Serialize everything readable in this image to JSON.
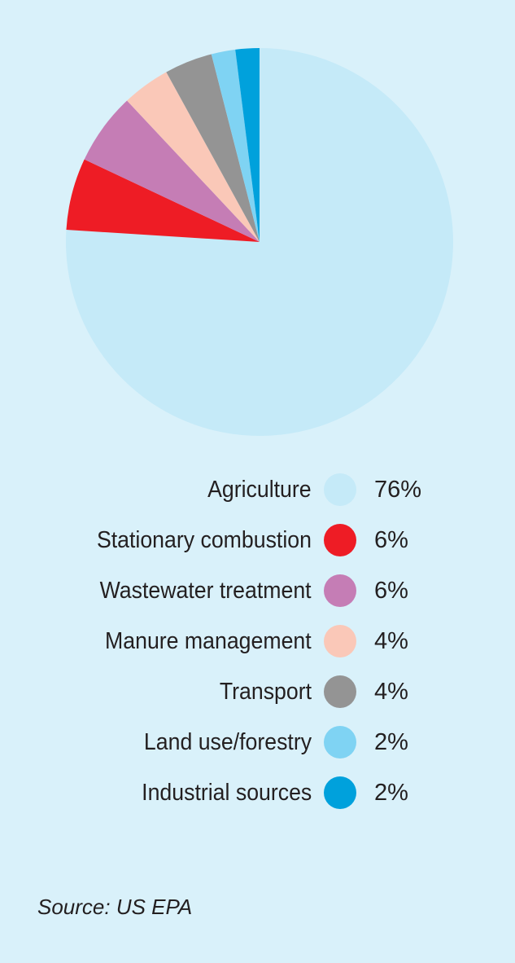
{
  "chart_data": {
    "type": "pie",
    "title": "",
    "legend_position": "bottom",
    "start": "top",
    "direction": "clockwise",
    "slices": [
      {
        "label": "Agriculture",
        "value": 76,
        "value_label": "76%",
        "color": "#c5eaf8"
      },
      {
        "label": "Stationary combustion",
        "value": 6,
        "value_label": "6%",
        "color": "#ee1c25"
      },
      {
        "label": "Wastewater treatment",
        "value": 6,
        "value_label": "6%",
        "color": "#c57db5"
      },
      {
        "label": "Manure management",
        "value": 4,
        "value_label": "4%",
        "color": "#fac8b8"
      },
      {
        "label": "Transport",
        "value": 4,
        "value_label": "4%",
        "color": "#949494"
      },
      {
        "label": "Land use/forestry",
        "value": 2,
        "value_label": "2%",
        "color": "#7fd3f3"
      },
      {
        "label": "Industrial sources",
        "value": 2,
        "value_label": "2%",
        "color": "#00a1dc"
      }
    ]
  },
  "footer": {
    "source": "Source: US EPA"
  }
}
